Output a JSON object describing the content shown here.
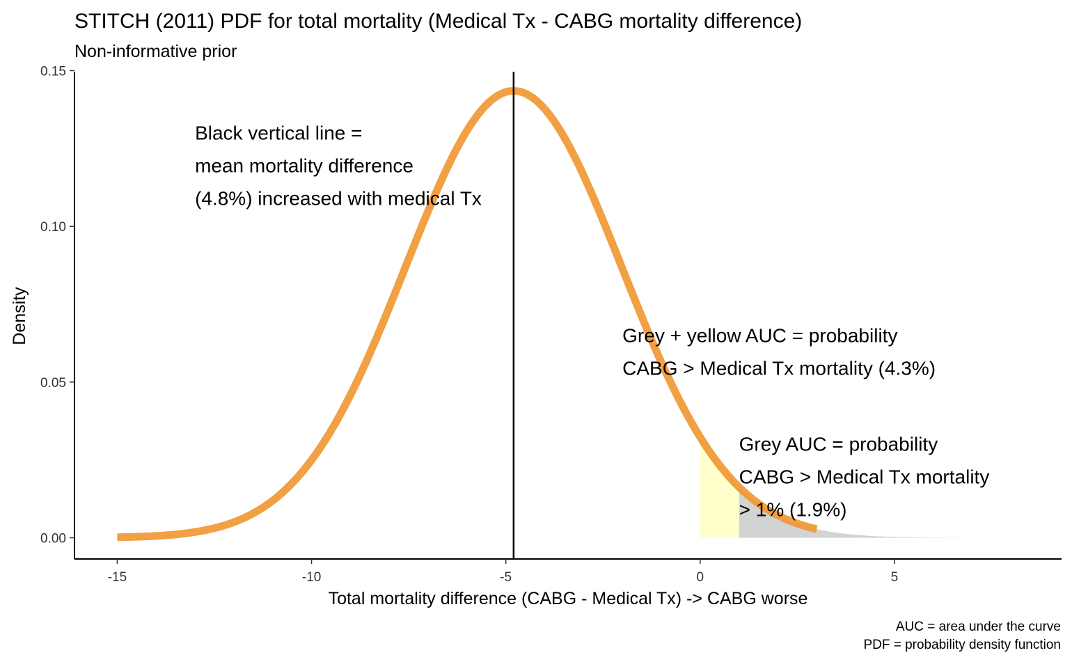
{
  "chart_data": {
    "type": "area",
    "title": "STITCH (2011) PDF for total mortality (Medical Tx - CABG mortality difference)",
    "subtitle": "Non-informative prior",
    "xlabel": "Total mortality difference (CABG - Medical Tx) -> CABG worse",
    "ylabel": "Density",
    "xlim": [
      -16.1,
      9.3
    ],
    "ylim": [
      -0.0068,
      0.151
    ],
    "x_ticks": [
      -15,
      -10,
      -5,
      0,
      5
    ],
    "x_tick_labels": [
      "-15",
      "-10",
      "-5",
      "0",
      "5"
    ],
    "y_ticks": [
      0.0,
      0.05,
      0.1,
      0.15
    ],
    "y_tick_labels": [
      "0.00",
      "0.05",
      "0.10",
      "0.15"
    ],
    "grid": false,
    "distribution": {
      "family": "normal",
      "mean": -4.8,
      "sd": 2.78
    },
    "series": [
      {
        "kind": "line",
        "x_range": [
          -15,
          3
        ],
        "color": "#F0962F"
      },
      {
        "kind": "shaded-area",
        "x_range": [
          1,
          7.2
        ],
        "color": "#D3D3D3"
      },
      {
        "kind": "shaded-area",
        "x_range": [
          0,
          1
        ],
        "color": "#FFFFCC"
      }
    ],
    "vline": {
      "x": -4.8,
      "color": "#000000"
    },
    "annotations": [
      {
        "lines": [
          "Black vertical line =",
          "mean mortality difference",
          "(4.8%) increased with medical Tx"
        ],
        "x": -13.0,
        "y": 0.1301
      },
      {
        "lines": [
          "Grey + yellow AUC = probability",
          "CABG > Medical Tx mortality (4.3%)"
        ],
        "x": -2.0,
        "y": 0.0651
      },
      {
        "lines": [
          "Grey AUC = probability",
          "CABG > Medical Tx mortality",
          "> 1% (1.9%)"
        ],
        "x": 1.0,
        "y": 0.0302
      }
    ],
    "caption": [
      "AUC = area under the curve",
      "PDF = probability density function"
    ]
  }
}
